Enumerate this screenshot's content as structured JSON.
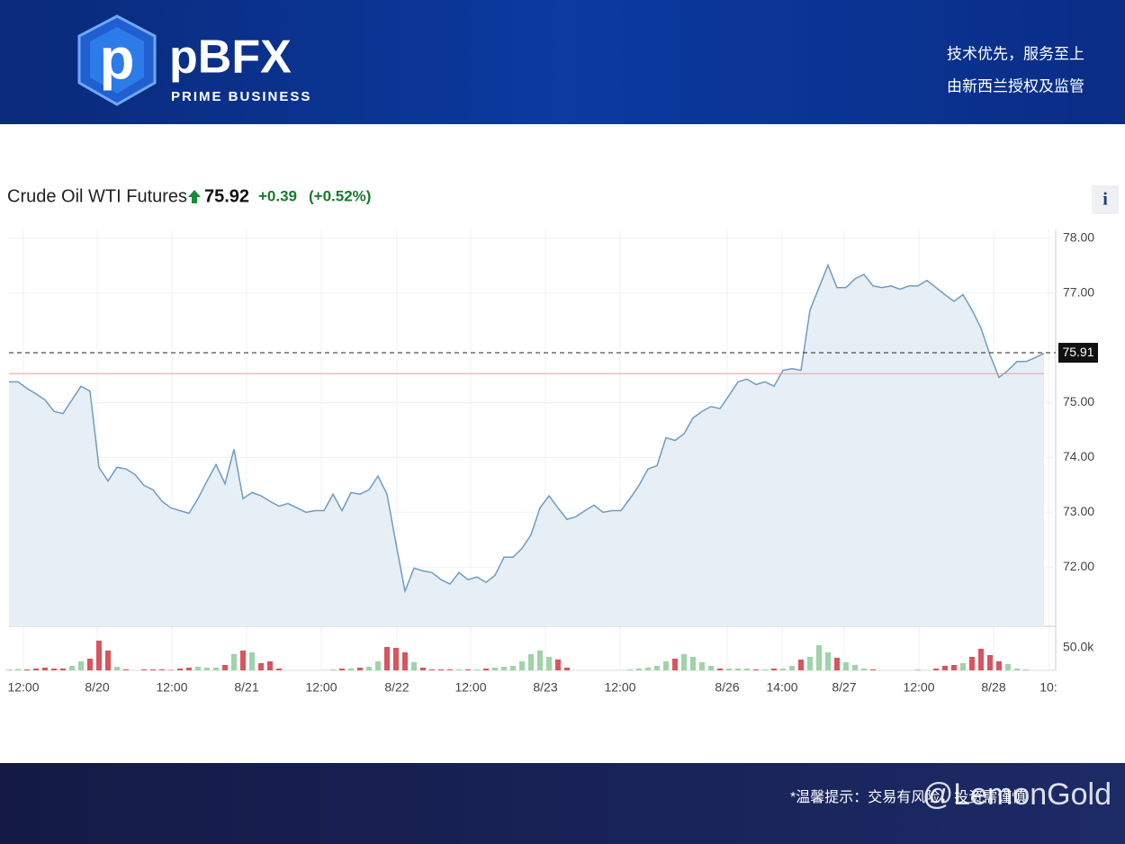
{
  "header": {
    "logo": "pBFX",
    "tagline": "PRIME BUSINESS",
    "slogan": [
      "技术优先，服务至上",
      "由新西兰授权及监管"
    ]
  },
  "footer": {
    "notice": "*温馨提示：交易有风险，投资需谨慎",
    "watermark": "@LemonGold"
  },
  "info_button": "i",
  "chart_data": {
    "type": "line",
    "title": "Crude Oil WTI Futures",
    "price": 75.92,
    "change": {
      "value": 0.39,
      "label": "+0.39"
    },
    "change_pct": {
      "value": 0.52,
      "label": "(+0.52%)"
    },
    "last_price": 75.91,
    "previous_close": 75.53,
    "grid": true,
    "line_color": "#6f9cc0",
    "fill_color": "#e6eef6",
    "x": [
      0,
      1,
      2,
      3,
      4,
      5,
      6,
      7,
      8,
      9,
      10,
      11,
      12,
      13,
      14,
      15,
      16,
      17,
      18,
      19,
      20,
      21,
      22,
      23,
      24,
      25,
      26,
      27,
      28,
      29,
      30,
      31,
      32,
      33,
      34,
      35,
      36,
      37,
      38,
      39,
      40,
      41,
      42,
      43,
      44,
      45,
      46,
      47,
      48,
      49,
      50,
      51,
      52,
      53,
      54,
      55,
      56,
      57,
      58,
      59,
      60,
      61,
      62,
      63,
      64,
      65,
      66,
      67,
      68,
      69,
      70,
      71,
      72,
      73,
      74,
      75,
      76,
      77,
      78,
      79,
      80,
      81,
      82,
      83,
      84,
      85,
      86,
      87,
      88,
      89,
      90,
      91,
      92,
      93,
      94,
      95,
      96,
      97,
      98,
      99,
      100,
      101,
      102,
      103,
      104,
      105,
      106,
      107,
      108,
      109,
      110,
      111,
      112,
      113,
      114,
      115
    ],
    "values": [
      75.38,
      75.38,
      75.26,
      75.16,
      75.05,
      74.84,
      74.8,
      75.05,
      75.3,
      75.21,
      73.82,
      73.57,
      73.82,
      73.79,
      73.69,
      73.49,
      73.41,
      73.2,
      73.08,
      73.03,
      72.98,
      73.25,
      73.57,
      73.87,
      73.52,
      74.15,
      73.25,
      73.36,
      73.3,
      73.2,
      73.11,
      73.16,
      73.08,
      73.0,
      73.03,
      73.03,
      73.33,
      73.03,
      73.36,
      73.33,
      73.41,
      73.66,
      73.33,
      72.43,
      71.56,
      71.98,
      71.93,
      71.9,
      71.77,
      71.69,
      71.9,
      71.77,
      71.82,
      71.72,
      71.85,
      72.18,
      72.18,
      72.34,
      72.59,
      73.08,
      73.3,
      73.08,
      72.87,
      72.92,
      73.03,
      73.13,
      73.0,
      73.03,
      73.03,
      73.25,
      73.49,
      73.79,
      73.85,
      74.36,
      74.31,
      74.43,
      74.72,
      74.84,
      74.93,
      74.89,
      75.13,
      75.38,
      75.43,
      75.33,
      75.38,
      75.3,
      75.59,
      75.62,
      75.59,
      76.69,
      77.1,
      77.51,
      77.1,
      77.1,
      77.26,
      77.34,
      77.13,
      77.1,
      77.13,
      77.07,
      77.13,
      77.13,
      77.23,
      77.1,
      76.97,
      76.85,
      76.97,
      76.69,
      76.36,
      75.87,
      75.46,
      75.59,
      75.75,
      75.75,
      75.82,
      75.9
    ],
    "volume": [
      2000,
      3000,
      2000,
      4000,
      6000,
      4000,
      4000,
      10000,
      20000,
      26000,
      66000,
      44000,
      8000,
      2000,
      0,
      2000,
      2000,
      2000,
      1000,
      4000,
      6000,
      8000,
      6000,
      6000,
      12000,
      36000,
      44000,
      40000,
      16000,
      20000,
      4000,
      0,
      0,
      0,
      0,
      0,
      2000,
      4000,
      4000,
      6000,
      8000,
      20000,
      52000,
      50000,
      40000,
      18000,
      6000,
      2000,
      2000,
      2000,
      2000,
      2000,
      2000,
      4000,
      6000,
      8000,
      10000,
      20000,
      36000,
      44000,
      30000,
      24000,
      6000,
      0,
      0,
      0,
      0,
      0,
      0,
      2000,
      4000,
      6000,
      10000,
      20000,
      26000,
      36000,
      30000,
      18000,
      10000,
      4000,
      4000,
      4000,
      4000,
      2000,
      2000,
      4000,
      4000,
      10000,
      24000,
      30000,
      56000,
      40000,
      28000,
      18000,
      12000,
      4000,
      2000,
      0,
      0,
      0,
      0,
      2000,
      0,
      4000,
      10000,
      12000,
      16000,
      30000,
      48000,
      34000,
      20000,
      14000,
      4000,
      2000,
      0,
      0
    ],
    "up_color": "#9fd3a9",
    "down_color": "#d9545e",
    "xlim": [
      0,
      116
    ],
    "ylim": [
      70.92,
      78.16
    ],
    "vlim": [
      0,
      96000
    ],
    "yticks": [
      {
        "value": 72,
        "label": "72.00"
      },
      {
        "value": 73,
        "label": "73.00"
      },
      {
        "value": 74,
        "label": "74.00"
      },
      {
        "value": 75,
        "label": "75.00"
      },
      {
        "value": 77,
        "label": "77.00"
      },
      {
        "value": 78,
        "label": "78.00"
      }
    ],
    "vticks": [
      {
        "value": 50000,
        "label": "50.0k"
      }
    ],
    "xticks": [
      {
        "value": 1.6,
        "label": "12:00"
      },
      {
        "value": 9.8,
        "label": "8/20"
      },
      {
        "value": 18.1,
        "label": "12:00"
      },
      {
        "value": 26.4,
        "label": "8/21"
      },
      {
        "value": 34.7,
        "label": "12:00"
      },
      {
        "value": 43.1,
        "label": "8/22"
      },
      {
        "value": 51.3,
        "label": "12:00"
      },
      {
        "value": 59.6,
        "label": "8/23"
      },
      {
        "value": 67.9,
        "label": "12:00"
      },
      {
        "value": 79.8,
        "label": "8/26"
      },
      {
        "value": 85.9,
        "label": "14:00"
      },
      {
        "value": 92.8,
        "label": "8/27"
      },
      {
        "value": 101.1,
        "label": "12:00"
      },
      {
        "value": 109.4,
        "label": "8/28"
      },
      {
        "value": 115.5,
        "label": "10:"
      }
    ]
  }
}
